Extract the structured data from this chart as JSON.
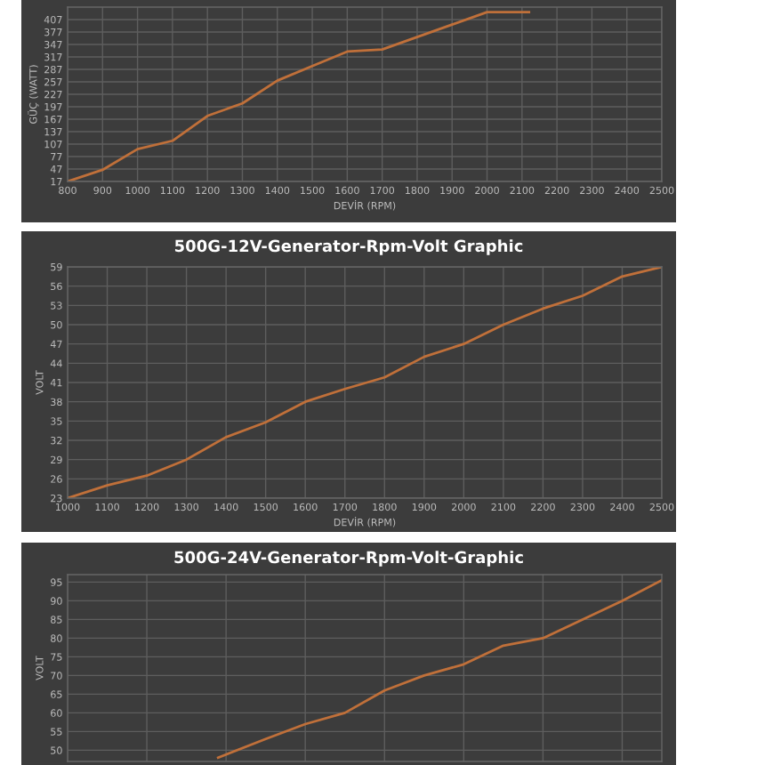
{
  "chart_data": [
    {
      "type": "line",
      "xlabel": "DEVİR (RPM)",
      "ylabel": "GÜÇ (WATT)",
      "x": [
        800,
        900,
        1000,
        1100,
        1200,
        1300,
        1400,
        1500,
        1600,
        1700,
        1800,
        1900,
        2000,
        2120
      ],
      "values": [
        17,
        45,
        95,
        115,
        175,
        205,
        260,
        295,
        330,
        335,
        365,
        395,
        425,
        425
      ],
      "color": "#c0703a",
      "xlim": [
        800,
        2500
      ],
      "ylim": [
        17,
        437
      ],
      "xticks": [
        800,
        900,
        1000,
        1100,
        1200,
        1300,
        1400,
        1500,
        1600,
        1700,
        1800,
        1900,
        2000,
        2100,
        2200,
        2300,
        2400,
        2500
      ],
      "yticks": [
        17,
        47,
        77,
        107,
        137,
        167,
        197,
        227,
        257,
        287,
        317,
        347,
        377,
        407
      ],
      "grid": true
    },
    {
      "type": "line",
      "title": "500G-12V-Generator-Rpm-Volt Graphic",
      "xlabel": "DEVİR (RPM)",
      "ylabel": "VOLT",
      "x": [
        1000,
        1100,
        1200,
        1300,
        1400,
        1500,
        1600,
        1700,
        1800,
        1900,
        2000,
        2100,
        2200,
        2300,
        2400,
        2500
      ],
      "values": [
        23,
        25,
        26.5,
        29,
        32.5,
        34.8,
        38,
        40,
        41.8,
        45,
        47,
        50,
        52.5,
        54.5,
        57.5,
        59
      ],
      "color": "#c0703a",
      "xlim": [
        1000,
        2500
      ],
      "ylim": [
        23,
        59
      ],
      "xticks": [
        1000,
        1100,
        1200,
        1300,
        1400,
        1500,
        1600,
        1700,
        1800,
        1900,
        2000,
        2100,
        2200,
        2300,
        2400,
        2500
      ],
      "yticks": [
        23,
        26,
        29,
        32,
        35,
        38,
        41,
        44,
        47,
        50,
        53,
        56,
        59
      ],
      "grid": true
    },
    {
      "type": "line",
      "title": "500G-24V-Generator-Rpm-Volt-Graphic",
      "ylabel": "VOLT",
      "x": [
        1380,
        1500,
        1600,
        1700,
        1800,
        1900,
        2000,
        2100,
        2200,
        2300,
        2400,
        2500
      ],
      "values": [
        48,
        53,
        57,
        60,
        66,
        70,
        73,
        78,
        80,
        85,
        90,
        95.5
      ],
      "color": "#c0703a",
      "xlim": [
        1000,
        2500
      ],
      "ylim": [
        47,
        97
      ],
      "yticks": [
        50,
        55,
        60,
        65,
        70,
        75,
        80,
        85,
        90,
        95
      ],
      "grid": true,
      "tick_labels": "y"
    }
  ]
}
